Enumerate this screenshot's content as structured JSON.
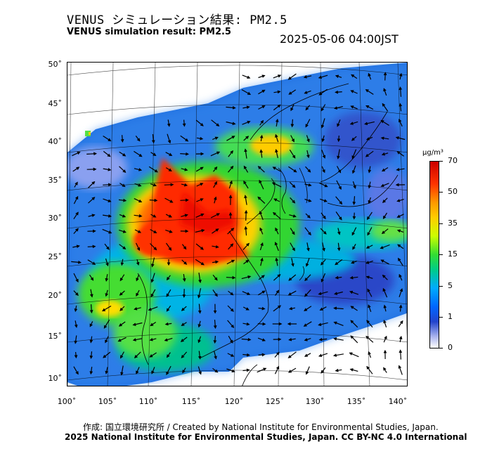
{
  "header": {
    "title_jp": "VENUS シミュレーション結果: PM2.5",
    "title_en": "VENUS simulation result: PM2.5",
    "datetime": "2025-05-06 04:00JST"
  },
  "map": {
    "lat_labels": [
      "50˚",
      "45˚",
      "40˚",
      "35˚",
      "30˚",
      "25˚",
      "20˚",
      "15˚",
      "10˚"
    ],
    "lon_labels": [
      "100˚",
      "105˚",
      "110˚",
      "115˚",
      "120˚",
      "125˚",
      "130˚",
      "135˚",
      "140˚"
    ]
  },
  "colorbar": {
    "unit": "μg/m³",
    "ticks": [
      "70",
      "50",
      "35",
      "15",
      "5",
      "1",
      "0"
    ]
  },
  "footer": {
    "credit_line1": "作成: 国立環境研究所 / Created by National Institute for Environmental Studies, Japan.",
    "credit_line2": "2025 National Institute for Environmental Studies, Japan. CC BY-NC 4.0 International"
  },
  "colors": {
    "high": "#ff2200",
    "mid_high": "#ffcc00",
    "mid": "#33dd33",
    "low": "#1e90ff",
    "very_low": "#2244cc"
  }
}
